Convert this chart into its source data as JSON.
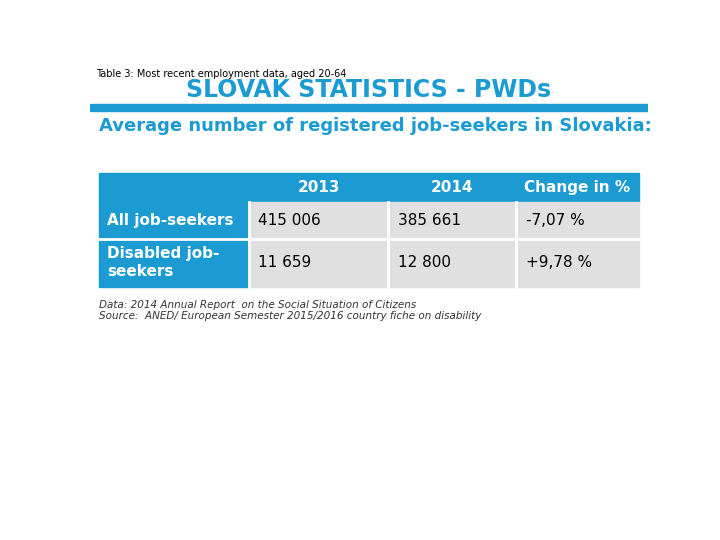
{
  "title_small": "Table 3: Most recent employment data, aged 20-64",
  "header_title": "SLOVAK STATISTICS - PWDs",
  "section_title": "Average number of registered job-seekers in Slovakia:",
  "col_headers": [
    "",
    "2013",
    "2014",
    "Change in %"
  ],
  "rows": [
    [
      "All job-seekers",
      "415 006",
      "385 661",
      "-7,07 %"
    ],
    [
      "Disabled job-\nseekers",
      "11 659",
      "12 800",
      "+9,78 %"
    ]
  ],
  "footer_line1": "Data: 2014 Annual Report  on the Social Situation of Citizens",
  "footer_line2": "Source:  ANED/ European Semester 2015/2016 country fiche on disability",
  "blue_header_color": "#1B9BD1",
  "light_row_color": "#E0E0E0",
  "white_bg": "#FFFFFF",
  "header_text_color": "#FFFFFF",
  "row_label_color": "#FFFFFF",
  "section_title_color": "#1B9BD1",
  "divider_color": "#1B9BD1",
  "small_title_color": "#000000",
  "fig_width": 7.2,
  "fig_height": 5.4,
  "dpi": 100
}
